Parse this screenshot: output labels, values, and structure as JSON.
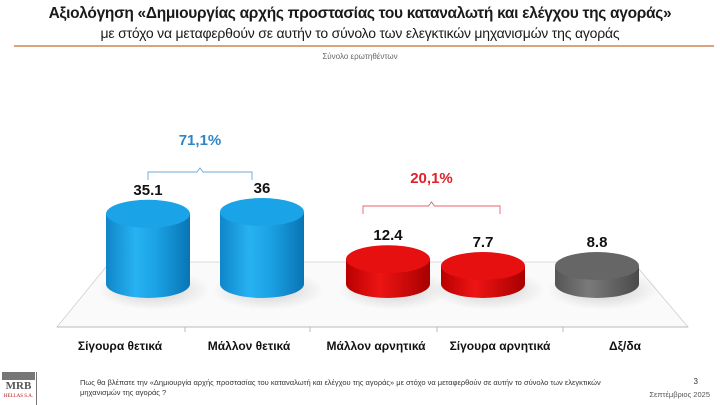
{
  "header": {
    "title": "Αξιολόγηση «Δημιουργίας αρχής προστασίας του καταναλωτή και ελέγχου της αγοράς»",
    "subtitle": "με στόχο να μεταφερθούν σε αυτήν το σύνολο των ελεγκτικών μηχανισμών της αγοράς",
    "base": "Σύνολο ερωτηθέντων"
  },
  "chart_data": {
    "type": "bar",
    "style": "3d-cylinder",
    "title": "Αξιολόγηση «Δημιουργίας αρχής προστασίας του καταναλωτή και ελέγχου της αγοράς»",
    "categories": [
      "Σίγουρα θετικά",
      "Μάλλον θετικά",
      "Μάλλον αρνητικά",
      "Σίγουρα αρνητικά",
      "Δξ/δα"
    ],
    "values": [
      35.1,
      36,
      12.4,
      7.7,
      8.8
    ],
    "value_labels": [
      "35.1",
      "36",
      "12.4",
      "7.7",
      "8.8"
    ],
    "colors": [
      "#1ea7e8",
      "#1ea7e8",
      "#e30b0b",
      "#e30b0b",
      "#6b6b6b"
    ],
    "groups": [
      {
        "label": "71,1%",
        "members": [
          0,
          1
        ],
        "color": "#2e86c8"
      },
      {
        "label": "20,1%",
        "members": [
          2,
          3
        ],
        "color": "#e0202a"
      }
    ],
    "xlabel": "",
    "ylabel": "",
    "grid": false,
    "legend": "none"
  },
  "footer": {
    "question": "Πως θα βλέπατε την «Δημιουργία αρχής προστασίας του καταναλωτή και ελέγχου της αγοράς» με στόχο να μεταφερθούν σε αυτήν το σύνολο των ελεγκτικών μηχανισμών της αγοράς ?",
    "page": "3",
    "date": "Σεπτέμβριος 2025",
    "logo_main": "MRB",
    "logo_sub": "HELLAS S.A."
  }
}
